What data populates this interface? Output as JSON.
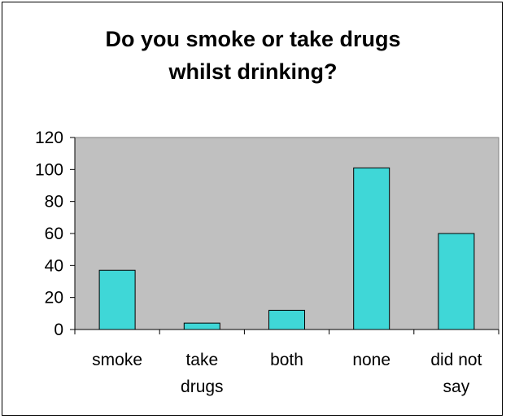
{
  "chart_data": {
    "type": "bar",
    "title_lines": [
      "Do you smoke or take drugs",
      "whilst drinking?"
    ],
    "xlabel": "",
    "ylabel": "",
    "categories": [
      [
        "smoke"
      ],
      [
        "take",
        "drugs"
      ],
      [
        "both"
      ],
      [
        "none"
      ],
      [
        "did not",
        "say"
      ]
    ],
    "values": [
      37,
      4,
      12,
      101,
      60
    ],
    "ylim": [
      0,
      120
    ],
    "yticks": [
      "0",
      "20",
      "40",
      "60",
      "80",
      "100",
      "120"
    ],
    "grid": false,
    "legend": "none",
    "colors": {
      "bar_fill": "#3fd7d7",
      "plot_background": "#c0c0c0",
      "axis": "#000000"
    }
  }
}
